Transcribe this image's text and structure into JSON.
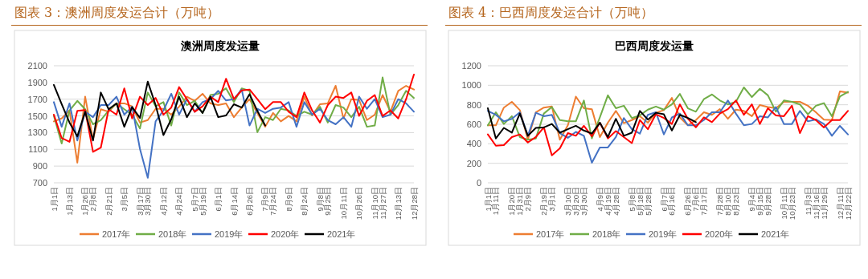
{
  "chart_data": [
    {
      "type": "line",
      "title": "图表 3：澳洲周度发运合计（万吨）",
      "subtitle": "澳洲周度发运量",
      "grid": "y",
      "legend": "bottom",
      "ylim": [
        700,
        2100
      ],
      "yticks": [
        700,
        900,
        1100,
        1300,
        1500,
        1700,
        1900,
        2100
      ],
      "categories": [
        "1月1日",
        null,
        "1月13日",
        null,
        "1月26日",
        "2月8日",
        null,
        "2月21日",
        null,
        "3月5日",
        null,
        "3月17日",
        "3月30日",
        null,
        "4月12日",
        null,
        "4月24日",
        null,
        "5月7日",
        "5月19日",
        null,
        "6月1日",
        null,
        "6月14日",
        null,
        "6月26日",
        null,
        "7月9日",
        "7月24日",
        null,
        "8月9日",
        null,
        "8月24日",
        null,
        "9月8日",
        "9月25日",
        null,
        "10月11日",
        null,
        "10月26日",
        null,
        "11月10日",
        "11月27日",
        null,
        "12月13日",
        null,
        "12月28日"
      ],
      "series": [
        {
          "name": "2017年",
          "color": "#ed7d31",
          "values": [
            1435,
            1470,
            1565,
            940,
            1730,
            1220,
            1580,
            1550,
            1650,
            1650,
            1615,
            1420,
            1450,
            1585,
            1585,
            1515,
            1610,
            1730,
            1680,
            1765,
            1650,
            1630,
            1650,
            1485,
            1600,
            1700,
            1535,
            1370,
            1535,
            1435,
            1500,
            1435,
            1730,
            1505,
            1640,
            1650,
            1860,
            1470,
            1700,
            1690,
            1450,
            1515,
            1750,
            1550,
            1800,
            1860,
            1815
          ]
        },
        {
          "name": "2018年",
          "color": "#70ad47",
          "values": [
            1500,
            1170,
            1565,
            1680,
            1580,
            1400,
            1450,
            1565,
            1650,
            1580,
            1515,
            1350,
            1780,
            1615,
            1665,
            1385,
            1780,
            1630,
            1680,
            1535,
            1750,
            1765,
            1830,
            1665,
            1830,
            1800,
            1305,
            1485,
            1450,
            1585,
            1565,
            1500,
            1550,
            1515,
            1610,
            1420,
            1630,
            1600,
            1485,
            1610,
            1370,
            1385,
            1960,
            1515,
            1630,
            1800,
            1715
          ]
        },
        {
          "name": "2019年",
          "color": "#4472c4",
          "values": [
            1665,
            1370,
            1650,
            1205,
            1550,
            1485,
            1630,
            1630,
            1730,
            1515,
            1610,
            1105,
            760,
            1435,
            1565,
            1765,
            1515,
            1700,
            1550,
            1665,
            1700,
            1800,
            1685,
            1700,
            1815,
            1385,
            1585,
            1535,
            1585,
            1600,
            1665,
            1370,
            1665,
            1515,
            1585,
            1450,
            1400,
            1485,
            1370,
            1730,
            1585,
            1700,
            1485,
            1515,
            1700,
            1650,
            1550
          ]
        },
        {
          "name": "2020年",
          "color": "#ff0000",
          "values": [
            1515,
            1235,
            1190,
            1560,
            1570,
            1070,
            1120,
            1580,
            1515,
            1830,
            1470,
            1730,
            1630,
            1715,
            1515,
            1600,
            1845,
            1700,
            1550,
            1615,
            1730,
            1665,
            1945,
            1700,
            1805,
            1815,
            1700,
            1580,
            1665,
            1665,
            1550,
            1485,
            1780,
            1565,
            1420,
            1630,
            1730,
            1715,
            1780,
            1500,
            1680,
            1750,
            1500,
            1565,
            1470,
            1700,
            1995
          ]
        },
        {
          "name": "2021年",
          "color": "#000000",
          "values": [
            1870,
            1640,
            1420,
            1255,
            1550,
            1205,
            1780,
            1580,
            1650,
            1370,
            1605,
            1475,
            1910,
            1630,
            1270,
            1460,
            1730,
            1485,
            1650,
            1535,
            1730,
            1485,
            1505,
            1640,
            1600,
            1760,
            1560,
            1385,
            null,
            null,
            null,
            null,
            null,
            null,
            null,
            null,
            null,
            null,
            null,
            null,
            null,
            null,
            null,
            null,
            null,
            null,
            null
          ]
        }
      ]
    },
    {
      "type": "line",
      "title": "图表 4：巴西周度发运合计（万吨）",
      "subtitle": "巴西周度发运量",
      "grid": "y",
      "legend": "bottom",
      "ylim": [
        0,
        1200
      ],
      "yticks": [
        0,
        200,
        400,
        600,
        800,
        1000,
        1200
      ],
      "categories": [
        "1月1日",
        "1月11日",
        null,
        "1月20日",
        "1月31日",
        "2月9日",
        null,
        "2月19日",
        "3月1日",
        null,
        "3月10日",
        "3月20日",
        "3月30日",
        null,
        "4月9日",
        "4月19日",
        "4月28日",
        null,
        "5月8日",
        "5月18日",
        "5月28日",
        null,
        "6月7日",
        "6月16日",
        null,
        "6月26日",
        "7月6日",
        "7月17日",
        null,
        "7月28日",
        "8月10日",
        "8月23日",
        null,
        "9月4日",
        "9月15日",
        "9月28日",
        null,
        "10月11日",
        "10月23日",
        null,
        "11月3日",
        "11月16日",
        "11月29日",
        null,
        "12月11日",
        "12月22日"
      ],
      "series": [
        {
          "name": "2017年",
          "color": "#ed7d31",
          "values": [
            589,
            589,
            771,
            830,
            745,
            442,
            723,
            771,
            782,
            442,
            589,
            884,
            764,
            755,
            469,
            616,
            737,
            611,
            643,
            683,
            616,
            718,
            745,
            870,
            670,
            590,
            643,
            723,
            697,
            755,
            656,
            750,
            737,
            683,
            798,
            777,
            764,
            830,
            830,
            830,
            790,
            723,
            648,
            643,
            937,
            924
          ]
        },
        {
          "name": "2018年",
          "color": "#70ad47",
          "values": [
            589,
            723,
            603,
            683,
            469,
            442,
            455,
            710,
            777,
            643,
            630,
            630,
            844,
            455,
            670,
            897,
            764,
            790,
            664,
            691,
            750,
            782,
            750,
            804,
            911,
            764,
            729,
            857,
            906,
            844,
            804,
            830,
            978,
            879,
            964,
            897,
            729,
            844,
            830,
            804,
            702,
            790,
            817,
            683,
            884,
            932
          ]
        },
        {
          "name": "2019年",
          "color": "#4472c4",
          "values": [
            737,
            697,
            630,
            656,
            723,
            482,
            718,
            683,
            697,
            509,
            461,
            522,
            482,
            206,
            362,
            362,
            469,
            664,
            549,
            504,
            697,
            723,
            496,
            670,
            710,
            590,
            590,
            643,
            723,
            723,
            844,
            710,
            590,
            603,
            683,
            670,
            777,
            603,
            603,
            737,
            630,
            650,
            603,
            482,
            584,
            496
          ]
        },
        {
          "name": "2020年",
          "color": "#ff0000",
          "values": [
            496,
            380,
            386,
            469,
            496,
            413,
            469,
            568,
            281,
            354,
            509,
            482,
            584,
            477,
            616,
            455,
            530,
            469,
            407,
            643,
            549,
            702,
            664,
            603,
            804,
            656,
            568,
            670,
            622,
            710,
            755,
            844,
            697,
            804,
            603,
            764,
            691,
            683,
            790,
            509,
            683,
            643,
            568,
            643,
            643,
            737
          ]
        },
        {
          "name": "2021年",
          "color": "#000000",
          "values": [
            764,
            455,
            563,
            514,
            710,
            482,
            563,
            568,
            603,
            514,
            549,
            584,
            536,
            504,
            616,
            469,
            656,
            482,
            514,
            737,
            648,
            718,
            702,
            536,
            697,
            665,
            622,
            null,
            null,
            null,
            null,
            null,
            null,
            null,
            null,
            null,
            null,
            null,
            null,
            null,
            null,
            null,
            null,
            null,
            null,
            null
          ]
        }
      ]
    }
  ]
}
